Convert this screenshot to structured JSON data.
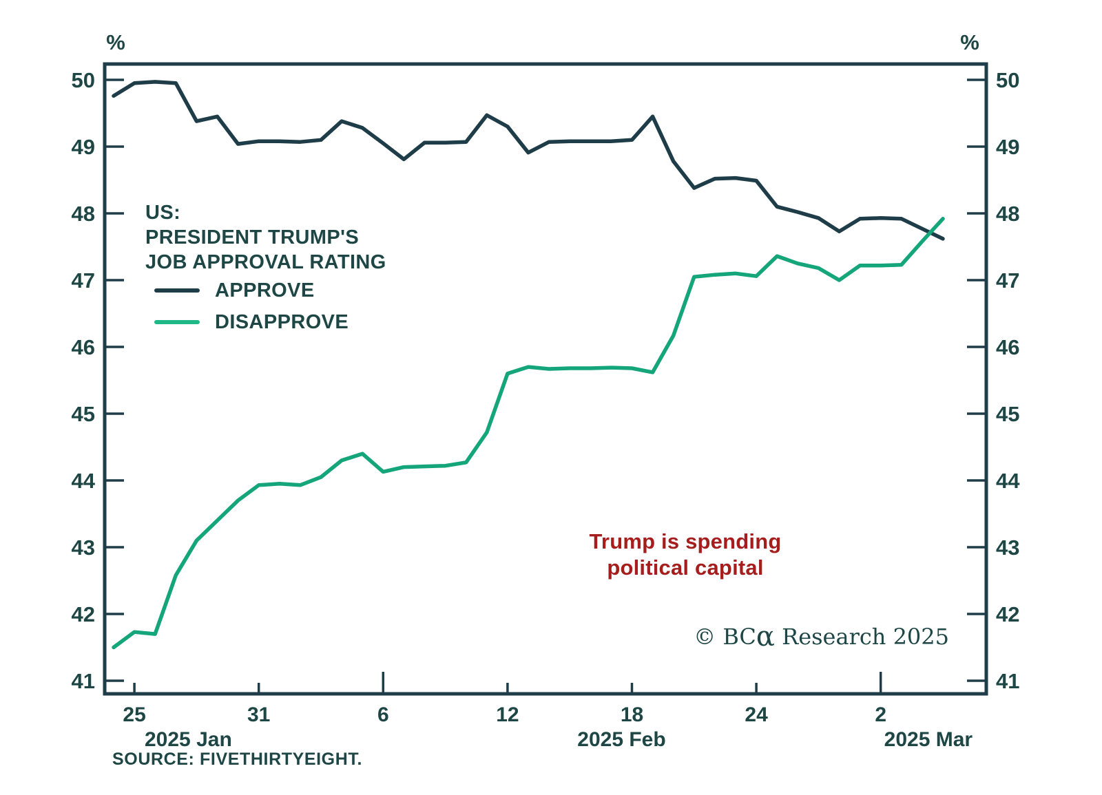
{
  "axes": {
    "unit": "%"
  },
  "title": {
    "line1": "US:",
    "line2": "PRESIDENT TRUMP'S",
    "line3": "JOB APPROVAL RATING"
  },
  "legend": [
    {
      "label": "APPROVE",
      "color": "#1E3D48"
    },
    {
      "label": "DISAPPROVE",
      "color": "#1FB886"
    }
  ],
  "annotation": {
    "line1": "Trump is spending",
    "line2": "political capital",
    "color": "#A51D1D"
  },
  "watermark": {
    "copyright": "© ",
    "brand": "BC",
    "alpha": "α",
    "suffix": " Research 2025"
  },
  "source": "SOURCE: FIVETHIRTYEIGHT.",
  "colors": {
    "frame": "#1E3D48",
    "axis_text": "#1D4645",
    "approve_line": "#1E3D48",
    "disapprove_line": "#15A57A"
  },
  "chart_data": {
    "type": "line",
    "title": "US: President Trump's Job Approval Rating",
    "y_unit": "%",
    "ylim": [
      41,
      50
    ],
    "yticks": [
      50,
      49,
      48,
      47,
      46,
      45,
      44,
      43,
      42,
      41
    ],
    "x": [
      "Jan 24",
      "Jan 25",
      "Jan 26",
      "Jan 27",
      "Jan 28",
      "Jan 29",
      "Jan 30",
      "Jan 31",
      "Feb 1",
      "Feb 2",
      "Feb 3",
      "Feb 4",
      "Feb 5",
      "Feb 6",
      "Feb 7",
      "Feb 8",
      "Feb 9",
      "Feb 10",
      "Feb 11",
      "Feb 12",
      "Feb 13",
      "Feb 14",
      "Feb 15",
      "Feb 16",
      "Feb 17",
      "Feb 18",
      "Feb 19",
      "Feb 20",
      "Feb 21",
      "Feb 22",
      "Feb 23",
      "Feb 24",
      "Feb 25",
      "Feb 26",
      "Feb 27",
      "Feb 28",
      "Mar 1",
      "Mar 2",
      "Mar 3",
      "Mar 4",
      "Mar 5"
    ],
    "series": [
      {
        "name": "APPROVE",
        "color": "#1E3D48",
        "values": [
          49.76,
          49.95,
          49.97,
          49.95,
          49.38,
          49.45,
          49.04,
          49.08,
          49.08,
          49.07,
          49.1,
          49.38,
          49.28,
          49.05,
          48.81,
          49.06,
          49.06,
          49.07,
          49.47,
          49.3,
          48.91,
          49.07,
          49.08,
          49.08,
          49.08,
          49.1,
          49.45,
          48.78,
          48.38,
          48.52,
          48.53,
          48.49,
          48.1,
          48.02,
          47.93,
          47.73,
          47.92,
          47.93,
          47.92,
          47.77,
          47.62
        ]
      },
      {
        "name": "DISAPPROVE",
        "color": "#15A57A",
        "values": [
          41.5,
          41.73,
          41.7,
          42.58,
          43.1,
          43.4,
          43.7,
          43.93,
          43.95,
          43.93,
          44.05,
          44.3,
          44.4,
          44.13,
          44.2,
          44.21,
          44.22,
          44.27,
          44.72,
          45.6,
          45.7,
          45.67,
          45.68,
          45.68,
          45.69,
          45.68,
          45.62,
          46.17,
          47.05,
          47.08,
          47.1,
          47.06,
          47.36,
          47.25,
          47.18,
          47.0,
          47.22,
          47.22,
          47.23,
          47.58,
          47.92
        ]
      }
    ],
    "xticks": [
      {
        "label": "25",
        "day": 1,
        "tall": false
      },
      {
        "label": "31",
        "day": 7,
        "tall": false
      },
      {
        "label": "6",
        "day": 13,
        "tall": true
      },
      {
        "label": "12",
        "day": 19,
        "tall": false
      },
      {
        "label": "18",
        "day": 25,
        "tall": false
      },
      {
        "label": "24",
        "day": 31,
        "tall": false
      },
      {
        "label": "2",
        "day": 37,
        "tall": true
      }
    ],
    "month_labels": [
      {
        "label": "2025 Jan",
        "center_day": 3.6
      },
      {
        "label": "2025 Feb",
        "center_day": 24.5
      },
      {
        "label": "2025 Mar",
        "center_day": 39.3
      }
    ],
    "grid": false,
    "legend_position": "upper-left-inside"
  }
}
